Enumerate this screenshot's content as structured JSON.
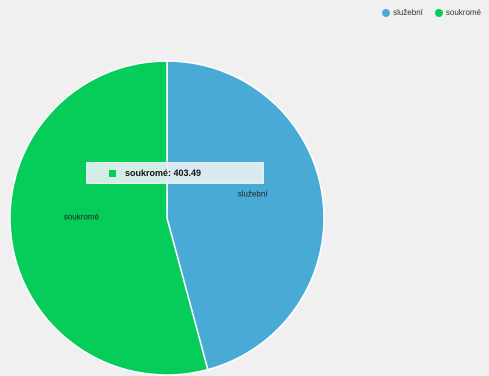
{
  "chart_data": {
    "type": "pie",
    "categories": [
      "služební",
      "soukromé"
    ],
    "values": [
      341.2,
      403.49
    ],
    "colors": [
      "#4aaad6",
      "#06cc5a"
    ],
    "legend": {
      "placement": "top-right",
      "items": [
        {
          "label": "služební",
          "color": "#4aaad6"
        },
        {
          "label": "soukromé",
          "color": "#06cc5a"
        }
      ]
    },
    "slice_labels": [
      "služební",
      "soukromé"
    ],
    "tooltip": {
      "category": "soukromé",
      "text": "soukromé: 403.49",
      "color": "#06cc5a"
    }
  }
}
